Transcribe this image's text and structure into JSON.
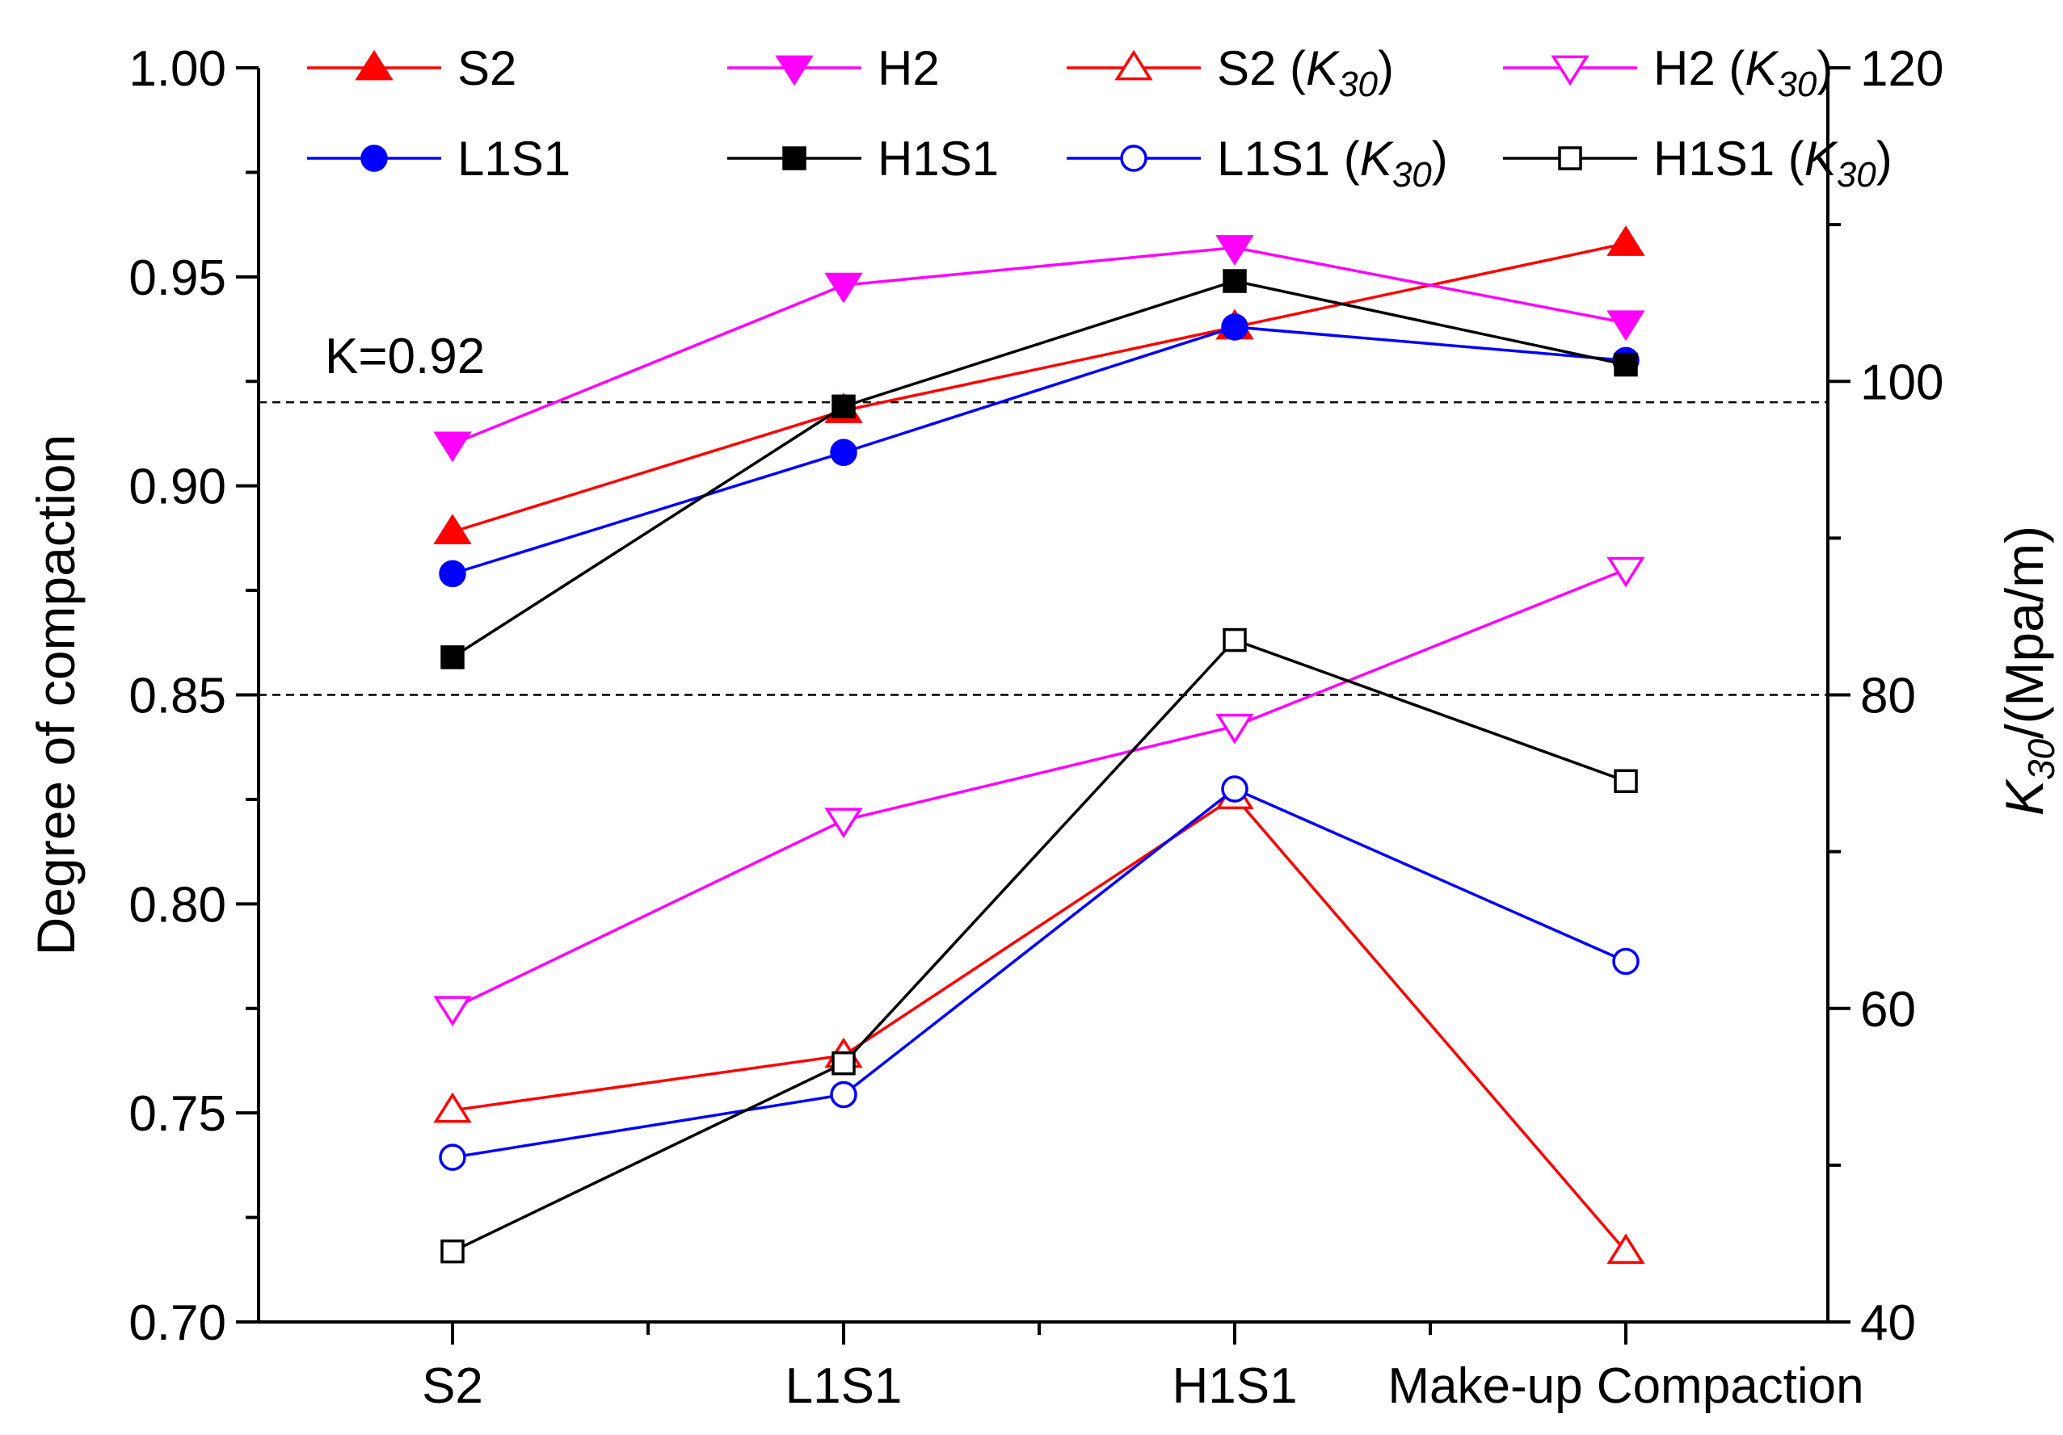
{
  "chart_data": {
    "type": "line",
    "categories": [
      "S2",
      "L1S1",
      "H1S1",
      "Make-up Compaction"
    ],
    "xlabel": "",
    "ylabel": "Degree of compaction",
    "y2label_main": "K",
    "y2label_sub": "30",
    "y2label_rest": "/(Mpa/m)",
    "ylim": [
      0.7,
      1.0
    ],
    "y2lim": [
      40,
      120
    ],
    "yticks": [
      "0.70",
      "0.75",
      "0.80",
      "0.85",
      "0.90",
      "0.95",
      "1.00"
    ],
    "y2ticks": [
      "40",
      "60",
      "80",
      "100",
      "120"
    ],
    "grid": false,
    "legend_placement": "top",
    "annotations": [
      {
        "text": "K=0.92",
        "axis": "left",
        "y": 0.92
      }
    ],
    "reference_lines": [
      {
        "axis": "left",
        "y": 0.92
      },
      {
        "axis": "left",
        "y": 0.85
      }
    ],
    "series": [
      {
        "name": "S2",
        "label_main": "S2",
        "label_sub": "",
        "axis": "left",
        "color": "#ff0000",
        "marker": "triangle-up",
        "filled": true,
        "values": [
          0.889,
          0.918,
          0.938,
          0.958
        ]
      },
      {
        "name": "H2",
        "label_main": "H2",
        "label_sub": "",
        "axis": "left",
        "color": "#ff00ff",
        "marker": "triangle-down",
        "filled": true,
        "values": [
          0.91,
          0.948,
          0.957,
          0.939
        ]
      },
      {
        "name": "S2 (K30)",
        "label_main": "S2 (K",
        "label_sub": "30",
        "axis": "right",
        "color": "#ff0000",
        "marker": "triangle-up",
        "filled": false,
        "values": [
          53.5,
          57.0,
          73.5,
          44.5
        ]
      },
      {
        "name": "H2 (K30)",
        "label_main": "H2 (K",
        "label_sub": "30",
        "axis": "right",
        "color": "#ff00ff",
        "marker": "triangle-down",
        "filled": false,
        "values": [
          60.0,
          72.0,
          78.0,
          88.0
        ]
      },
      {
        "name": "L1S1",
        "label_main": "L1S1",
        "label_sub": "",
        "axis": "left",
        "color": "#0000ff",
        "marker": "circle",
        "filled": true,
        "values": [
          0.879,
          0.908,
          0.938,
          0.93
        ]
      },
      {
        "name": "H1S1",
        "label_main": "H1S1",
        "label_sub": "",
        "axis": "left",
        "color": "#000000",
        "marker": "square",
        "filled": true,
        "values": [
          0.859,
          0.919,
          0.949,
          0.929
        ]
      },
      {
        "name": "L1S1 (K30)",
        "label_main": "L1S1 (K",
        "label_sub": "30",
        "axis": "right",
        "color": "#0000ff",
        "marker": "circle",
        "filled": false,
        "values": [
          50.5,
          54.5,
          74.0,
          63.0
        ]
      },
      {
        "name": "H1S1 (K30)",
        "label_main": "H1S1 (K",
        "label_sub": "30",
        "axis": "right",
        "color": "#000000",
        "marker": "square",
        "filled": false,
        "values": [
          44.5,
          56.5,
          83.5,
          74.5
        ]
      }
    ]
  }
}
